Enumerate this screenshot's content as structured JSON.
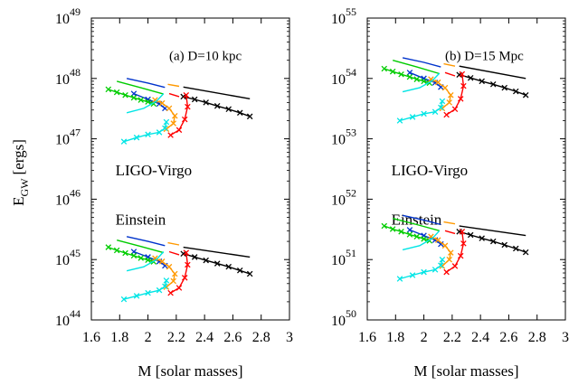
{
  "figure": {
    "ylabel": "E",
    "ylabel_sub": "GW",
    "ylabel_unit": "[ergs]"
  },
  "chart_data": [
    {
      "type": "line",
      "id": "a",
      "xlabel": "M [solar masses]",
      "ylabel": "E_GW [ergs]",
      "yscale": "log",
      "xlim": [
        1.6,
        3.0
      ],
      "ylim": [
        1e+44,
        1e+49
      ],
      "xticks": [
        "1.6",
        "1.8",
        "2",
        "2.2",
        "2.4",
        "2.6",
        "2.8",
        "3"
      ],
      "yticks": [
        {
          "base": "10",
          "exp": "44"
        },
        {
          "base": "10",
          "exp": "45"
        },
        {
          "base": "10",
          "exp": "46"
        },
        {
          "base": "10",
          "exp": "47"
        },
        {
          "base": "10",
          "exp": "48"
        },
        {
          "base": "10",
          "exp": "49"
        }
      ],
      "annotations": [
        {
          "text": "(a) D=10 kpc",
          "x": 2.15,
          "y": 2e+48
        },
        {
          "text": "LIGO-Virgo",
          "x": 1.77,
          "y": 2.5e+46
        },
        {
          "text": "Einstein",
          "x": 1.77,
          "y": 3.8e+45
        }
      ],
      "series": [
        {
          "color": "#000000",
          "marker": "none",
          "x": [
            2.25,
            2.72
          ],
          "y": [
            7.2e+47,
            4.6e+47
          ]
        },
        {
          "color": "#000000",
          "marker": "x",
          "x": [
            2.25,
            2.33,
            2.41,
            2.49,
            2.57,
            2.65,
            2.72
          ],
          "y": [
            5e+47,
            4.5e+47,
            4e+47,
            3.5e+47,
            3.1e+47,
            2.7e+47,
            2.35e+47
          ]
        },
        {
          "color": "#0033cc",
          "marker": "none",
          "x": [
            1.85,
            2.0,
            2.12
          ],
          "y": [
            1e+48,
            8.4e+47,
            7.1e+47
          ]
        },
        {
          "color": "#0033cc",
          "marker": "x",
          "x": [
            1.9,
            2.0,
            2.08,
            2.12
          ],
          "y": [
            5.6e+47,
            4.5e+47,
            3.8e+47,
            3.2e+47
          ]
        },
        {
          "color": "#00cc00",
          "marker": "none",
          "x": [
            1.78,
            1.95,
            2.11
          ],
          "y": [
            9e+47,
            7e+47,
            5.5e+47
          ]
        },
        {
          "color": "#00cc00",
          "marker": "x",
          "x": [
            1.72,
            1.78,
            1.84,
            1.9,
            1.95,
            2.0,
            2.04
          ],
          "y": [
            6.6e+47,
            5.9e+47,
            5.3e+47,
            4.8e+47,
            4.4e+47,
            4.1e+47,
            3.8e+47
          ]
        },
        {
          "color": "#ff9900",
          "marker": "none",
          "x": [
            2.14,
            2.22
          ],
          "y": [
            8e+47,
            7.4e+47
          ]
        },
        {
          "color": "#ff9900",
          "marker": "x",
          "x": [
            2.05,
            2.1,
            2.15,
            2.19,
            2.18,
            2.13
          ],
          "y": [
            4.4e+47,
            3.9e+47,
            3.2e+47,
            2.4e+47,
            1.8e+47,
            1.45e+47
          ]
        },
        {
          "color": "#ff0000",
          "marker": "none",
          "x": [
            2.15,
            2.22
          ],
          "y": [
            5.6e+47,
            5e+47
          ]
        },
        {
          "color": "#ff0000",
          "marker": "x",
          "x": [
            2.27,
            2.28,
            2.26,
            2.22,
            2.16
          ],
          "y": [
            5.3e+47,
            3.4e+47,
            2.1e+47,
            1.4e+47,
            1.15e+47
          ]
        },
        {
          "color": "#00e5e5",
          "marker": "none",
          "x": [
            1.85,
            1.97,
            2.06,
            2.11
          ],
          "y": [
            2.7e+47,
            3.2e+47,
            4.2e+47,
            5.6e+47
          ]
        },
        {
          "color": "#00e5e5",
          "marker": "x",
          "x": [
            1.83,
            1.92,
            2.0,
            2.08,
            2.12,
            2.13
          ],
          "y": [
            9e+46,
            1.05e+47,
            1.18e+47,
            1.28e+47,
            1.5e+47,
            1.9e+47
          ]
        }
      ]
    },
    {
      "type": "line",
      "id": "b",
      "xlabel": "M [solar masses]",
      "ylabel": "E_GW [ergs]",
      "yscale": "log",
      "xlim": [
        1.6,
        3.0
      ],
      "ylim": [
        1e+50,
        1e+55
      ],
      "xticks": [
        "1.6",
        "1.8",
        "2",
        "2.2",
        "2.4",
        "2.6",
        "2.8",
        "3"
      ],
      "yticks": [
        {
          "base": "10",
          "exp": "50"
        },
        {
          "base": "10",
          "exp": "51"
        },
        {
          "base": "10",
          "exp": "52"
        },
        {
          "base": "10",
          "exp": "53"
        },
        {
          "base": "10",
          "exp": "54"
        },
        {
          "base": "10",
          "exp": "55"
        }
      ],
      "annotations": [
        {
          "text": "(b) D=15 Mpc",
          "x": 2.15,
          "y": 2e+54
        },
        {
          "text": "LIGO-Virgo",
          "x": 1.77,
          "y": 2.5e+52
        },
        {
          "text": "Einstein",
          "x": 1.77,
          "y": 3.8e+51
        }
      ],
      "series": [
        {
          "color": "#000000",
          "marker": "none",
          "x": [
            2.25,
            2.72
          ],
          "y": [
            1.6e+54,
            1e+54
          ]
        },
        {
          "color": "#000000",
          "marker": "x",
          "x": [
            2.25,
            2.33,
            2.41,
            2.49,
            2.57,
            2.65,
            2.72
          ],
          "y": [
            1.15e+54,
            1.02e+54,
            9e+53,
            8e+53,
            7e+53,
            6.1e+53,
            5.3e+53
          ]
        },
        {
          "color": "#0033cc",
          "marker": "none",
          "x": [
            1.85,
            2.0,
            2.12
          ],
          "y": [
            2.2e+54,
            1.85e+54,
            1.55e+54
          ]
        },
        {
          "color": "#0033cc",
          "marker": "x",
          "x": [
            1.9,
            2.0,
            2.08,
            2.12
          ],
          "y": [
            1.25e+54,
            1e+54,
            8.5e+53,
            7.2e+53
          ]
        },
        {
          "color": "#00cc00",
          "marker": "none",
          "x": [
            1.78,
            1.95,
            2.11
          ],
          "y": [
            2e+54,
            1.55e+54,
            1.2e+54
          ]
        },
        {
          "color": "#00cc00",
          "marker": "x",
          "x": [
            1.72,
            1.78,
            1.84,
            1.9,
            1.95,
            2.0,
            2.04
          ],
          "y": [
            1.45e+54,
            1.3e+54,
            1.17e+54,
            1.06e+54,
            9.7e+53,
            9e+53,
            8.4e+53
          ]
        },
        {
          "color": "#ff9900",
          "marker": "none",
          "x": [
            2.14,
            2.22
          ],
          "y": [
            1.75e+54,
            1.6e+54
          ]
        },
        {
          "color": "#ff9900",
          "marker": "x",
          "x": [
            2.05,
            2.1,
            2.15,
            2.19,
            2.18,
            2.13
          ],
          "y": [
            9.7e+53,
            8.6e+53,
            7e+53,
            5.3e+53,
            4e+53,
            3.2e+53
          ]
        },
        {
          "color": "#ff0000",
          "marker": "none",
          "x": [
            2.15,
            2.22
          ],
          "y": [
            1.25e+54,
            1.1e+54
          ]
        },
        {
          "color": "#ff0000",
          "marker": "x",
          "x": [
            2.27,
            2.28,
            2.26,
            2.22,
            2.16
          ],
          "y": [
            1.18e+54,
            7.5e+53,
            4.6e+53,
            3.1e+53,
            2.5e+53
          ]
        },
        {
          "color": "#00e5e5",
          "marker": "none",
          "x": [
            1.85,
            1.97,
            2.06,
            2.11
          ],
          "y": [
            6e+53,
            7e+53,
            9.2e+53,
            1.22e+54
          ]
        },
        {
          "color": "#00e5e5",
          "marker": "x",
          "x": [
            1.83,
            1.92,
            2.0,
            2.08,
            2.12,
            2.13
          ],
          "y": [
            2e+53,
            2.3e+53,
            2.6e+53,
            2.8e+53,
            3.3e+53,
            4.2e+53
          ]
        },
        {
          "color": "#000000",
          "marker": "none",
          "x": [
            2.25,
            2.72
          ],
          "y": [
            3.6e+51,
            2.5e+51
          ]
        },
        {
          "color": "#000000",
          "marker": "x",
          "x": [
            2.25,
            2.33,
            2.41,
            2.49,
            2.57,
            2.65,
            2.72
          ],
          "y": [
            2.9e+51,
            2.55e+51,
            2.25e+51,
            2e+51,
            1.75e+51,
            1.52e+51,
            1.32e+51
          ]
        },
        {
          "color": "#0033cc",
          "marker": "none",
          "x": [
            1.85,
            2.0,
            2.12
          ],
          "y": [
            5.4e+51,
            4.5e+51,
            3.8e+51
          ]
        },
        {
          "color": "#0033cc",
          "marker": "x",
          "x": [
            1.9,
            2.0,
            2.08,
            2.12
          ],
          "y": [
            3.1e+51,
            2.5e+51,
            2.1e+51,
            1.8e+51
          ]
        },
        {
          "color": "#00cc00",
          "marker": "none",
          "x": [
            1.78,
            1.95,
            2.11
          ],
          "y": [
            4.8e+51,
            3.8e+51,
            3e+51
          ]
        },
        {
          "color": "#00cc00",
          "marker": "x",
          "x": [
            1.72,
            1.78,
            1.84,
            1.9,
            1.95,
            2.0,
            2.04
          ],
          "y": [
            3.6e+51,
            3.2e+51,
            2.9e+51,
            2.6e+51,
            2.4e+51,
            2.2e+51,
            2.05e+51
          ]
        },
        {
          "color": "#ff9900",
          "marker": "none",
          "x": [
            2.14,
            2.22
          ],
          "y": [
            4.2e+51,
            3.9e+51
          ]
        },
        {
          "color": "#ff9900",
          "marker": "x",
          "x": [
            2.05,
            2.1,
            2.15,
            2.19,
            2.18,
            2.13
          ],
          "y": [
            2.4e+51,
            2.1e+51,
            1.7e+51,
            1.3e+51,
            1e+51,
            7.8e+50
          ]
        },
        {
          "color": "#ff0000",
          "marker": "none",
          "x": [
            2.15,
            2.22
          ],
          "y": [
            3e+51,
            2.7e+51
          ]
        },
        {
          "color": "#ff0000",
          "marker": "x",
          "x": [
            2.27,
            2.28,
            2.26,
            2.22,
            2.16
          ],
          "y": [
            2.9e+51,
            1.85e+51,
            1.15e+51,
            7.8e+50,
            6.2e+50
          ]
        },
        {
          "color": "#00e5e5",
          "marker": "none",
          "x": [
            1.85,
            1.97,
            2.06,
            2.11
          ],
          "y": [
            1.45e+51,
            1.7e+51,
            2.25e+51,
            3e+51
          ]
        },
        {
          "color": "#00e5e5",
          "marker": "x",
          "x": [
            1.83,
            1.92,
            2.0,
            2.08,
            2.12,
            2.13
          ],
          "y": [
            4.8e+50,
            5.5e+50,
            6.2e+50,
            6.8e+50,
            8e+50,
            1e+51
          ]
        }
      ]
    },
    {
      "type": "line",
      "id": "a-einstein",
      "xlim": [
        1.6,
        3.0
      ],
      "ylim": [
        1e+44,
        1e+49
      ],
      "yscale": "log",
      "series": [
        {
          "color": "#000000",
          "marker": "none",
          "x": [
            2.25,
            2.72
          ],
          "y": [
            1.6e+45,
            1.1e+45
          ]
        },
        {
          "color": "#000000",
          "marker": "x",
          "x": [
            2.25,
            2.33,
            2.41,
            2.49,
            2.57,
            2.65,
            2.72
          ],
          "y": [
            1.25e+45,
            1.1e+45,
            9.7e+44,
            8.6e+44,
            7.6e+44,
            6.6e+44,
            5.8e+44
          ]
        },
        {
          "color": "#0033cc",
          "marker": "none",
          "x": [
            1.85,
            2.0,
            2.12
          ],
          "y": [
            2.4e+45,
            2e+45,
            1.7e+45
          ]
        },
        {
          "color": "#0033cc",
          "marker": "x",
          "x": [
            1.9,
            2.0,
            2.08,
            2.12
          ],
          "y": [
            1.35e+45,
            1.1e+45,
            9.3e+44,
            7.9e+44
          ]
        },
        {
          "color": "#00cc00",
          "marker": "none",
          "x": [
            1.78,
            1.95,
            2.11
          ],
          "y": [
            2.1e+45,
            1.65e+45,
            1.3e+45
          ]
        },
        {
          "color": "#00cc00",
          "marker": "x",
          "x": [
            1.72,
            1.78,
            1.84,
            1.9,
            1.95,
            2.0,
            2.04
          ],
          "y": [
            1.6e+45,
            1.42e+45,
            1.28e+45,
            1.16e+45,
            1.06e+45,
            9.8e+44,
            9.2e+44
          ]
        },
        {
          "color": "#ff9900",
          "marker": "none",
          "x": [
            2.14,
            2.22
          ],
          "y": [
            1.9e+45,
            1.75e+45
          ]
        },
        {
          "color": "#ff9900",
          "marker": "x",
          "x": [
            2.05,
            2.1,
            2.15,
            2.19,
            2.18,
            2.13
          ],
          "y": [
            1.05e+45,
            9.3e+44,
            7.6e+44,
            5.8e+44,
            4.4e+44,
            3.5e+44
          ]
        },
        {
          "color": "#ff0000",
          "marker": "none",
          "x": [
            2.15,
            2.22
          ],
          "y": [
            1.35e+45,
            1.2e+45
          ]
        },
        {
          "color": "#ff0000",
          "marker": "x",
          "x": [
            2.27,
            2.28,
            2.26,
            2.22,
            2.16
          ],
          "y": [
            1.3e+45,
            8.2e+44,
            5e+44,
            3.4e+44,
            2.8e+44
          ]
        },
        {
          "color": "#00e5e5",
          "marker": "none",
          "x": [
            1.85,
            1.97,
            2.06,
            2.11
          ],
          "y": [
            6.5e+44,
            7.6e+44,
            1e+45,
            1.35e+45
          ]
        },
        {
          "color": "#00e5e5",
          "marker": "x",
          "x": [
            1.83,
            1.92,
            2.0,
            2.08,
            2.12,
            2.13
          ],
          "y": [
            2.2e+44,
            2.5e+44,
            2.8e+44,
            3.1e+44,
            3.6e+44,
            4.5e+44
          ]
        }
      ]
    }
  ]
}
